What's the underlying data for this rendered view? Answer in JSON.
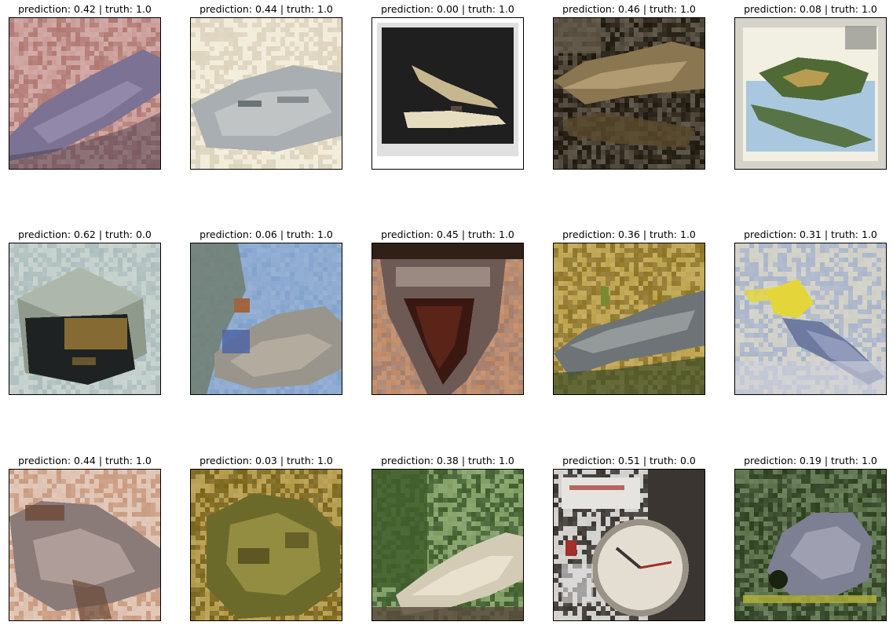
{
  "figure": {
    "panels": [
      {
        "title": "prediction: 0.42 | truth: 1.0",
        "prediction": 0.42,
        "truth": 1.0,
        "subject": "crocodile head on pink background",
        "palette": {
          "bg": "#c48f8a",
          "bg2": "#b17872",
          "subject": "#7b7294",
          "subject2": "#9c92b3",
          "accent": "#4a4050"
        }
      },
      {
        "title": "prediction: 0.44 | truth: 1.0",
        "prediction": 0.44,
        "truth": 1.0,
        "subject": "pale crocodile head",
        "palette": {
          "bg": "#f0e8d2",
          "bg2": "#ddd4bd",
          "subject": "#a8aeb2",
          "subject2": "#c5c9c8",
          "accent": "#6c7377"
        }
      },
      {
        "title": "prediction: 0.00 | truth: 1.0",
        "prediction": 0.0,
        "truth": 1.0,
        "subject": "crocodile jaws in dark frame",
        "palette": {
          "bg": "#ffffff",
          "bg2": "#1f1f1f",
          "subject": "#c7b78f",
          "subject2": "#e6dcc0",
          "accent": "#5a4a3a"
        }
      },
      {
        "title": "prediction: 0.46 | truth: 1.0",
        "prediction": 0.46,
        "truth": 1.0,
        "subject": "crocodile in dark water",
        "palette": {
          "bg": "#2e2514",
          "bg2": "#1e170b",
          "subject": "#8a7650",
          "subject2": "#b9a57a",
          "accent": "#5a4a2c"
        }
      },
      {
        "title": "prediction: 0.08 | truth: 1.0",
        "prediction": 0.08,
        "truth": 1.0,
        "subject": "crocodile on postage stamp",
        "palette": {
          "bg": "#d6d4c8",
          "bg2": "#a9c8df",
          "subject": "#4f6a35",
          "subject2": "#d2a95a",
          "accent": "#8c8c86"
        }
      },
      {
        "title": "prediction: 0.62 | truth: 0.0",
        "prediction": 0.62,
        "truth": 0.0,
        "subject": "dark box object",
        "palette": {
          "bg": "#9fb3b2",
          "bg2": "#c3cfcb",
          "subject": "#1e2222",
          "subject2": "#8f9a8c",
          "accent": "#b08a3a"
        }
      },
      {
        "title": "prediction: 0.06 | truth: 1.0",
        "prediction": 0.06,
        "truth": 1.0,
        "subject": "crocodile among rocks under blue sky",
        "palette": {
          "bg": "#6f94c4",
          "bg2": "#8aa8cf",
          "subject": "#9a958c",
          "subject2": "#b9b2a3",
          "accent": "#a0653f"
        }
      },
      {
        "title": "prediction: 0.45 | truth: 1.0",
        "prediction": 0.45,
        "truth": 1.0,
        "subject": "open crocodile mouth",
        "palette": {
          "bg": "#9a6a52",
          "bg2": "#c08863",
          "subject": "#6e5a55",
          "subject2": "#b8aaa0",
          "accent": "#3a1812"
        }
      },
      {
        "title": "prediction: 0.36 | truth: 1.0",
        "prediction": 0.36,
        "truth": 1.0,
        "subject": "grey crocodile on yellow ground",
        "palette": {
          "bg": "#b39430",
          "bg2": "#8e7425",
          "subject": "#6d7376",
          "subject2": "#9ea2a3",
          "accent": "#3d4f2a"
        }
      },
      {
        "title": "prediction: 0.31 | truth: 1.0",
        "prediction": 0.31,
        "truth": 1.0,
        "subject": "crocodile with yellow figure",
        "palette": {
          "bg": "#c9c8bd",
          "bg2": "#aab5c9",
          "subject": "#6f7aa0",
          "subject2": "#98a2c2",
          "accent": "#e4d63a"
        }
      },
      {
        "title": "prediction: 0.44 | truth: 1.0",
        "prediction": 0.44,
        "truth": 1.0,
        "subject": "crocodile belly up on sand",
        "palette": {
          "bg": "#d9b8a4",
          "bg2": "#c99a7e",
          "subject": "#8a7a78",
          "subject2": "#b6a6a0",
          "accent": "#6b4a36"
        }
      },
      {
        "title": "prediction: 0.03 | truth: 1.0",
        "prediction": 0.03,
        "truth": 1.0,
        "subject": "green textured crocodile",
        "palette": {
          "bg": "#a8892a",
          "bg2": "#7a6418",
          "subject": "#6c6a2a",
          "subject2": "#9c9646",
          "accent": "#3a3510"
        }
      },
      {
        "title": "prediction: 0.38 | truth: 1.0",
        "prediction": 0.38,
        "truth": 1.0,
        "subject": "pale crocodile near plants",
        "palette": {
          "bg": "#6a8d48",
          "bg2": "#3f5e2c",
          "subject": "#d4cbb6",
          "subject2": "#ebe3cf",
          "accent": "#5a4a3c"
        }
      },
      {
        "title": "prediction: 0.51 | truth: 0.0",
        "prediction": 0.51,
        "truth": 0.0,
        "subject": "clock",
        "palette": {
          "bg": "#c9c7c3",
          "bg2": "#3a3530",
          "subject": "#c6bfb2",
          "subject2": "#e3ddd2",
          "accent": "#a03028"
        }
      },
      {
        "title": "prediction: 0.19 | truth: 1.0",
        "prediction": 0.19,
        "truth": 1.0,
        "subject": "grey crocodile in grass",
        "palette": {
          "bg": "#3f5a2c",
          "bg2": "#2c3f1e",
          "subject": "#7d7f92",
          "subject2": "#a6a8b8",
          "accent": "#b4b43a"
        }
      }
    ]
  }
}
